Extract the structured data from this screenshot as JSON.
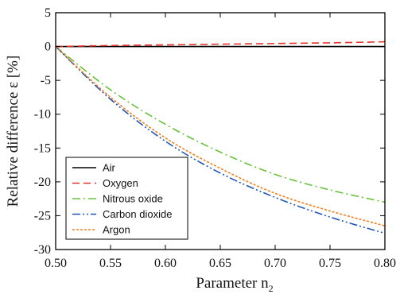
{
  "chart_data": {
    "type": "line",
    "xlabel": "Parameter n",
    "xlabel_subscript": "2",
    "ylabel": "Relative difference ε [%]",
    "xlim": [
      0.5,
      0.8
    ],
    "ylim": [
      -30,
      5
    ],
    "xticks": [
      "0.50",
      "0.55",
      "0.60",
      "0.65",
      "0.70",
      "0.75",
      "0.80"
    ],
    "yticks": [
      "5",
      "0",
      "-5",
      "-10",
      "-15",
      "-20",
      "-25",
      "-30"
    ],
    "grid": false,
    "legend_position": "bottom-left",
    "x": [
      0.5,
      0.55,
      0.6,
      0.65,
      0.7,
      0.75,
      0.8
    ],
    "series": [
      {
        "name": "Air",
        "color": "#000000",
        "dash": "solid",
        "values": [
          0,
          0,
          0,
          0,
          0,
          0,
          0
        ]
      },
      {
        "name": "Oxygen",
        "color": "#e8322b",
        "dash": "dashed",
        "values": [
          0,
          0.15,
          0.25,
          0.35,
          0.45,
          0.55,
          0.7
        ]
      },
      {
        "name": "Nitrous oxide",
        "color": "#66c23a",
        "dash": "dashdot",
        "values": [
          0,
          -6.4,
          -11.5,
          -15.6,
          -18.9,
          -21.2,
          -23.0
        ]
      },
      {
        "name": "Carbon dioxide",
        "color": "#1f56b5",
        "dash": "dashdotdot",
        "values": [
          0,
          -7.8,
          -14.0,
          -18.7,
          -22.3,
          -25.2,
          -27.6
        ]
      },
      {
        "name": "Argon",
        "color": "#f07f1c",
        "dash": "dotted",
        "values": [
          0,
          -7.5,
          -13.5,
          -18.0,
          -21.7,
          -24.3,
          -26.5
        ]
      }
    ]
  }
}
